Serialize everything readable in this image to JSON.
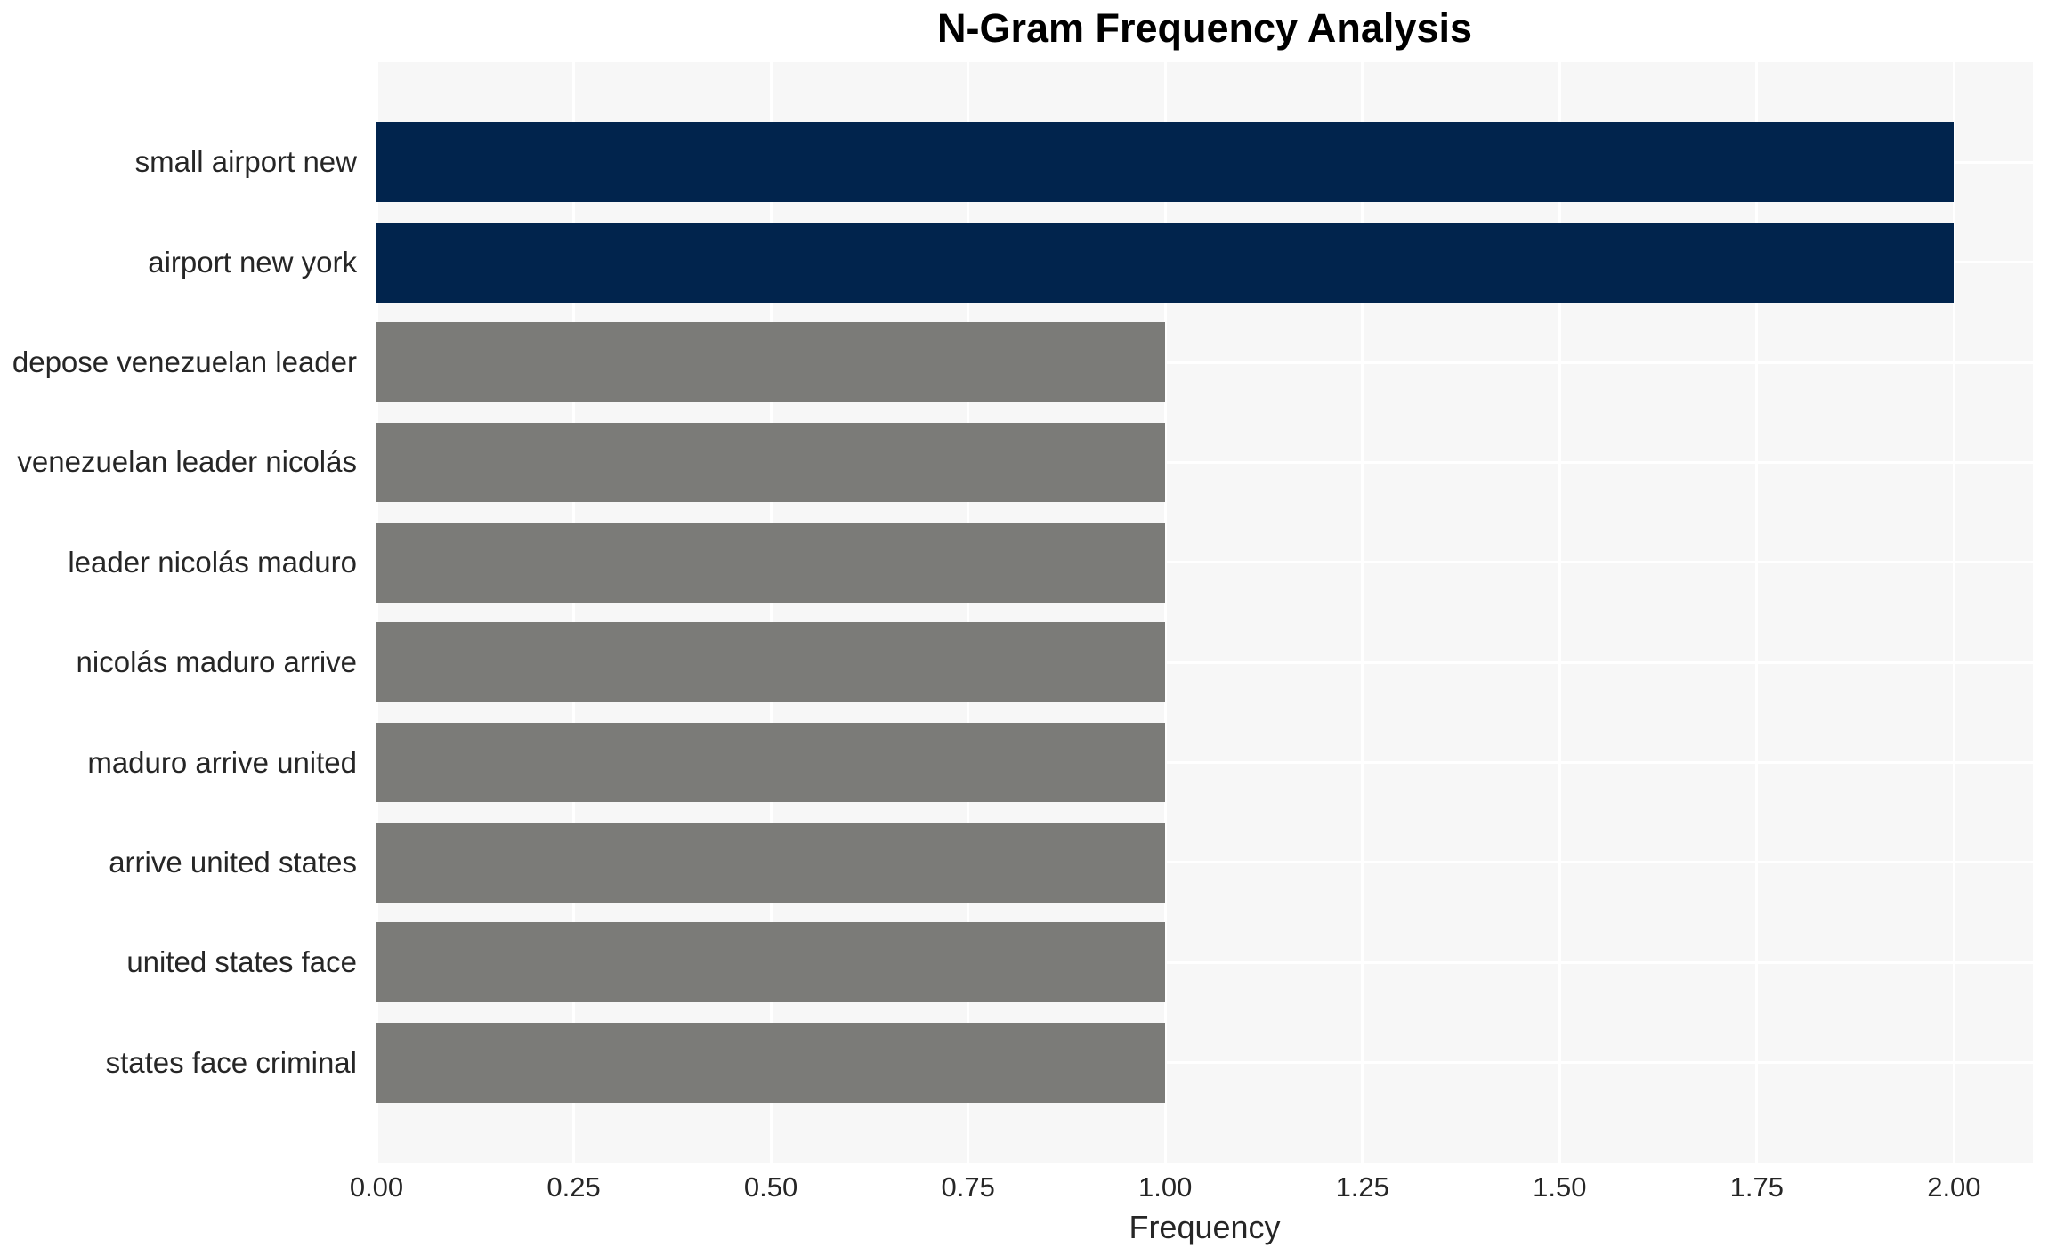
{
  "chart_data": {
    "type": "bar",
    "orientation": "horizontal",
    "title": "N-Gram Frequency Analysis",
    "xlabel": "Frequency",
    "ylabel": "",
    "categories": [
      "small airport new",
      "airport new york",
      "depose venezuelan leader",
      "venezuelan leader nicolás",
      "leader nicolás maduro",
      "nicolás maduro arrive",
      "maduro arrive united",
      "arrive united states",
      "united states face",
      "states face criminal"
    ],
    "values": [
      2,
      2,
      1,
      1,
      1,
      1,
      1,
      1,
      1,
      1
    ],
    "bar_colors": [
      "#01244d",
      "#01244d",
      "#7b7b78",
      "#7b7b78",
      "#7b7b78",
      "#7b7b78",
      "#7b7b78",
      "#7b7b78",
      "#7b7b78",
      "#7b7b78"
    ],
    "xlim": [
      0,
      2.1
    ],
    "xticks": [
      0,
      0.25,
      0.5,
      0.75,
      1.0,
      1.25,
      1.5,
      1.75,
      2.0
    ],
    "xtick_labels": [
      "0.00",
      "0.25",
      "0.50",
      "0.75",
      "1.00",
      "1.25",
      "1.50",
      "1.75",
      "2.00"
    ],
    "grid": true,
    "legend": null,
    "colors": {
      "highlight_bar": "#01244d",
      "default_bar": "#7b7b78",
      "plot_background": "#f7f7f7",
      "grid_color": "#ffffff",
      "text_color": "#262626",
      "title_color": "#000000"
    }
  }
}
